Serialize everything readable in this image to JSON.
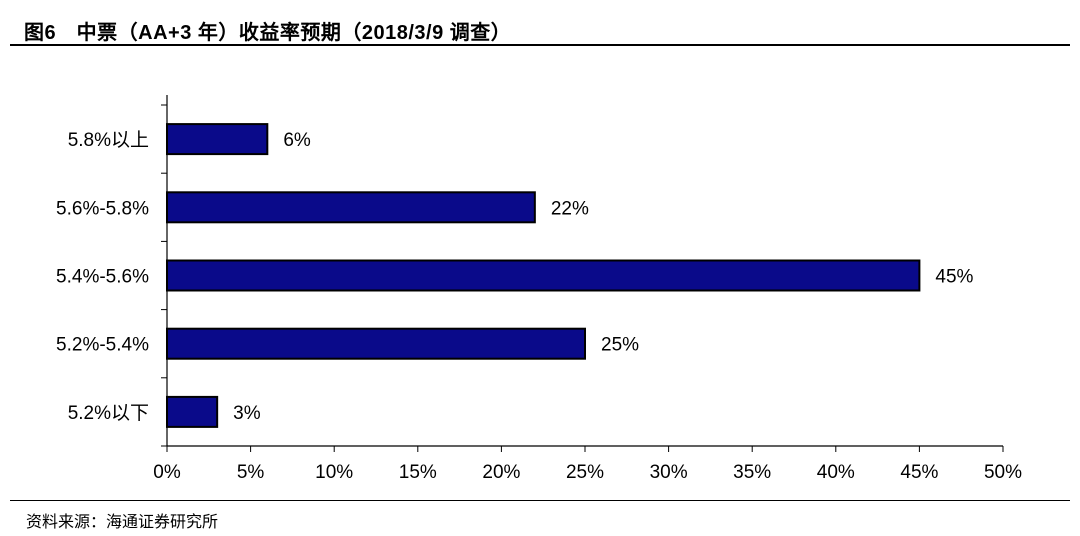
{
  "header": {
    "title": "图6　中票（AA+3 年）收益率预期（2018/3/9 调查）"
  },
  "footer": {
    "source": "资料来源：海通证券研究所"
  },
  "chart_data": {
    "type": "bar",
    "orientation": "horizontal",
    "categories": [
      "5.8%以上",
      "5.6%-5.8%",
      "5.4%-5.6%",
      "5.2%-5.4%",
      "5.2%以下"
    ],
    "values": [
      6,
      22,
      45,
      25,
      3
    ],
    "value_labels": [
      "6%",
      "22%",
      "45%",
      "25%",
      "3%"
    ],
    "xlim": [
      0,
      50
    ],
    "x_ticks": [
      0,
      5,
      10,
      15,
      20,
      25,
      30,
      35,
      40,
      45,
      50
    ],
    "x_tick_labels": [
      "0%",
      "5%",
      "10%",
      "15%",
      "20%",
      "25%",
      "30%",
      "35%",
      "40%",
      "45%",
      "50%"
    ],
    "bar_color": "#0a0a8a",
    "grid": false,
    "legend": "none"
  }
}
